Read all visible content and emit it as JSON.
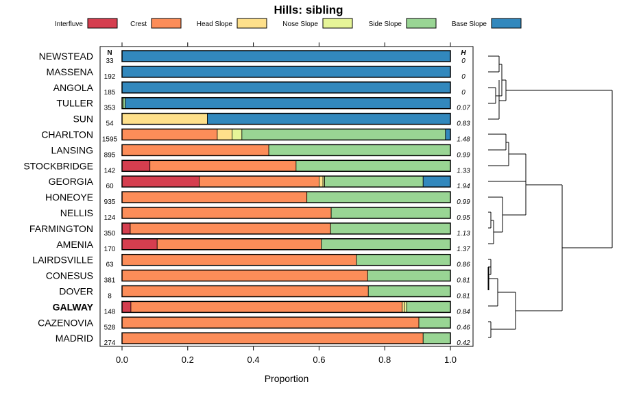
{
  "chart_data": {
    "type": "bar",
    "orientation": "horizontal",
    "stacked": true,
    "title": "Hills: sibling",
    "xlabel": "Proportion",
    "ylabel": "",
    "xlim": [
      0,
      1
    ],
    "x_ticks": [
      "0.0",
      "0.2",
      "0.4",
      "0.6",
      "0.8",
      "1.0"
    ],
    "n_header": "N",
    "h_header": "H",
    "highlighted": "GALWAY",
    "legend": [
      {
        "name": "Interfluve",
        "color": "#D53E4F"
      },
      {
        "name": "Crest",
        "color": "#FC8D59"
      },
      {
        "name": "Head Slope",
        "color": "#FEE08B"
      },
      {
        "name": "Nose Slope",
        "color": "#E6F598"
      },
      {
        "name": "Side Slope",
        "color": "#99D594"
      },
      {
        "name": "Base Slope",
        "color": "#3288BD"
      }
    ],
    "rows": [
      {
        "name": "NEWSTEAD",
        "n": "33",
        "h": "0",
        "values": [
          0,
          0,
          0,
          0,
          0,
          1.0
        ]
      },
      {
        "name": "MASSENA",
        "n": "192",
        "h": "0",
        "values": [
          0,
          0,
          0,
          0,
          0,
          1.0
        ]
      },
      {
        "name": "ANGOLA",
        "n": "185",
        "h": "0",
        "values": [
          0,
          0,
          0,
          0,
          0,
          1.0
        ]
      },
      {
        "name": "TULLER",
        "n": "353",
        "h": "0.07",
        "values": [
          0,
          0,
          0,
          0.003,
          0.007,
          0.99
        ]
      },
      {
        "name": "SUN",
        "n": "54",
        "h": "0.83",
        "values": [
          0,
          0,
          0.26,
          0,
          0,
          0.74
        ]
      },
      {
        "name": "CHARLTON",
        "n": "1595",
        "h": "1.48",
        "values": [
          0,
          0.29,
          0.045,
          0.03,
          0.62,
          0.015
        ]
      },
      {
        "name": "LANSING",
        "n": "895",
        "h": "0.99",
        "values": [
          0,
          0.447,
          0,
          0,
          0.553,
          0
        ]
      },
      {
        "name": "STOCKBRIDGE",
        "n": "142",
        "h": "1.33",
        "values": [
          0.085,
          0.445,
          0,
          0,
          0.47,
          0
        ]
      },
      {
        "name": "GEORGIA",
        "n": "60",
        "h": "1.94",
        "values": [
          0.235,
          0.365,
          0.012,
          0.005,
          0.3,
          0.083
        ]
      },
      {
        "name": "HONEOYE",
        "n": "935",
        "h": "0.99",
        "values": [
          0,
          0.563,
          0,
          0,
          0.437,
          0
        ]
      },
      {
        "name": "NELLIS",
        "n": "124",
        "h": "0.95",
        "values": [
          0,
          0.637,
          0,
          0,
          0.363,
          0
        ]
      },
      {
        "name": "FARMINGTON",
        "n": "350",
        "h": "1.13",
        "values": [
          0.025,
          0.61,
          0,
          0,
          0.365,
          0
        ]
      },
      {
        "name": "AMENIA",
        "n": "170",
        "h": "1.37",
        "values": [
          0.107,
          0.5,
          0,
          0,
          0.393,
          0
        ]
      },
      {
        "name": "LAIRDSVILLE",
        "n": "63",
        "h": "0.86",
        "values": [
          0,
          0.714,
          0,
          0,
          0.286,
          0
        ]
      },
      {
        "name": "CONESUS",
        "n": "381",
        "h": "0.81",
        "values": [
          0,
          0.748,
          0,
          0,
          0.252,
          0
        ]
      },
      {
        "name": "DOVER",
        "n": "8",
        "h": "0.81",
        "values": [
          0,
          0.75,
          0,
          0,
          0.25,
          0
        ]
      },
      {
        "name": "GALWAY",
        "n": "148",
        "h": "0.84",
        "values": [
          0.027,
          0.826,
          0.007,
          0.007,
          0.133,
          0
        ]
      },
      {
        "name": "CAZENOVIA",
        "n": "528",
        "h": "0.46",
        "values": [
          0,
          0.904,
          0,
          0,
          0.096,
          0
        ]
      },
      {
        "name": "MADRID",
        "n": "274",
        "h": "0.42",
        "values": [
          0,
          0.917,
          0,
          0,
          0.083,
          0
        ]
      }
    ]
  }
}
